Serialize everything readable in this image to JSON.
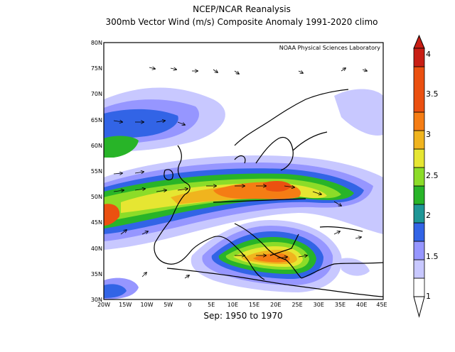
{
  "title_line1": "NCEP/NCAR Reanalysis",
  "title_line2": "300mb Vector Wind (m/s) Composite Anomaly 1991-2020 climo",
  "credit": "NOAA Physical Sciences Laboratory",
  "footer": "Sep: 1950 to 1970",
  "map": {
    "lon_range": [
      -20,
      45
    ],
    "lat_range": [
      30,
      80
    ],
    "lon_ticks": [
      "20W",
      "15W",
      "10W",
      "5W",
      "0",
      "5E",
      "10E",
      "15E",
      "20E",
      "25E",
      "30E",
      "35E",
      "40E",
      "45E"
    ],
    "lat_ticks": [
      "30N",
      "35N",
      "40N",
      "45N",
      "50N",
      "55N",
      "60N",
      "65N",
      "70N",
      "75N",
      "80N"
    ]
  },
  "colorbar": {
    "labels": [
      "1",
      "1.5",
      "2",
      "2.5",
      "3",
      "3.5",
      "4"
    ],
    "colors": [
      "#ffffff",
      "#c8c8ff",
      "#9696ff",
      "#3264e6",
      "#1e9696",
      "#28b428",
      "#8cdc28",
      "#e6e632",
      "#f0b41e",
      "#f57d14",
      "#eb5010",
      "#c81e14"
    ]
  }
}
